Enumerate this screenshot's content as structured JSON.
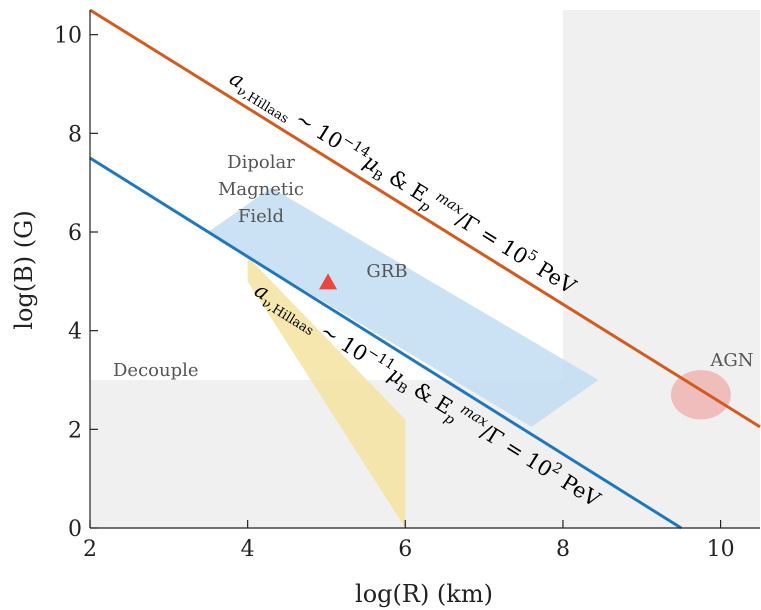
{
  "chart_data": {
    "type": "line",
    "title": "",
    "xlabel": "log(R) (km)",
    "ylabel": "log(B) (G)",
    "xlim": [
      2,
      10.5
    ],
    "ylim": [
      0,
      10.5
    ],
    "xticks": [
      "2",
      "4",
      "6",
      "8",
      "10"
    ],
    "yticks": [
      "0",
      "2",
      "4",
      "6",
      "8",
      "10"
    ],
    "grid": false,
    "legend": "none",
    "colors": {
      "decouple": "#f0f0f0",
      "dipolar": "#f5e3a0",
      "grb": "#c2dcf2",
      "agn": "#f0b4b4",
      "line_upper": "#d45a1e",
      "line_lower": "#1f77bf",
      "marker": "#e8473c"
    },
    "series": [
      {
        "name": "a_ν,Hillaas ~ 10^-14 μB & Ep^max/Γ = 10^5 PeV",
        "x": [
          2,
          10.5
        ],
        "y": [
          10.5,
          2.05
        ]
      },
      {
        "name": "a_ν,Hillaas ~ 10^-11 μB & Ep^max/Γ = 10^2 PeV",
        "x": [
          2,
          9.5
        ],
        "y": [
          7.5,
          0
        ]
      }
    ],
    "series_labels": {
      "upper": {
        "a": "a",
        "sub": "ν,Hillaas",
        "mid": " ~ 10",
        "exp": "−14",
        "mu": "μ",
        "musub": "B",
        "amp": " & E",
        "esub": "p",
        "esup": "max",
        "tail": "/Γ = 10",
        "texp": "5",
        "unit": " PeV"
      },
      "lower": {
        "a": "a",
        "sub": "ν,Hillaas",
        "mid": " ~ 10",
        "exp": "−11",
        "mu": "μ",
        "musub": "B",
        "amp": " & E",
        "esub": "p",
        "esup": "max",
        "tail": "/Γ = 10",
        "texp": "2",
        "unit": " PeV"
      }
    },
    "regions": {
      "decouple": {
        "label": "Decouple",
        "x": [
          2,
          8
        ],
        "y": [
          0,
          3
        ],
        "extra_x": [
          8,
          10.5
        ],
        "extra_y": [
          0,
          10.5
        ]
      },
      "dipolar": {
        "label_lines": [
          "Dipolar",
          "Magnetic",
          "Field"
        ],
        "polygon": [
          [
            4,
            8.2
          ],
          [
            4,
            5.5
          ],
          [
            6,
            2.2
          ],
          [
            6,
            0
          ],
          [
            4,
            5.0
          ]
        ]
      },
      "grb": {
        "label": "GRB",
        "polygon": [
          [
            3.5,
            6.0
          ],
          [
            4.3,
            6.9
          ],
          [
            8.45,
            3.0
          ],
          [
            7.6,
            2.05
          ]
        ]
      },
      "agn": {
        "label": "AGN",
        "center": [
          9.75,
          2.7
        ],
        "rx": 0.38,
        "ry": 0.5
      }
    },
    "points": [
      {
        "x": 5.02,
        "y": 5.0,
        "marker": "triangle"
      }
    ]
  }
}
